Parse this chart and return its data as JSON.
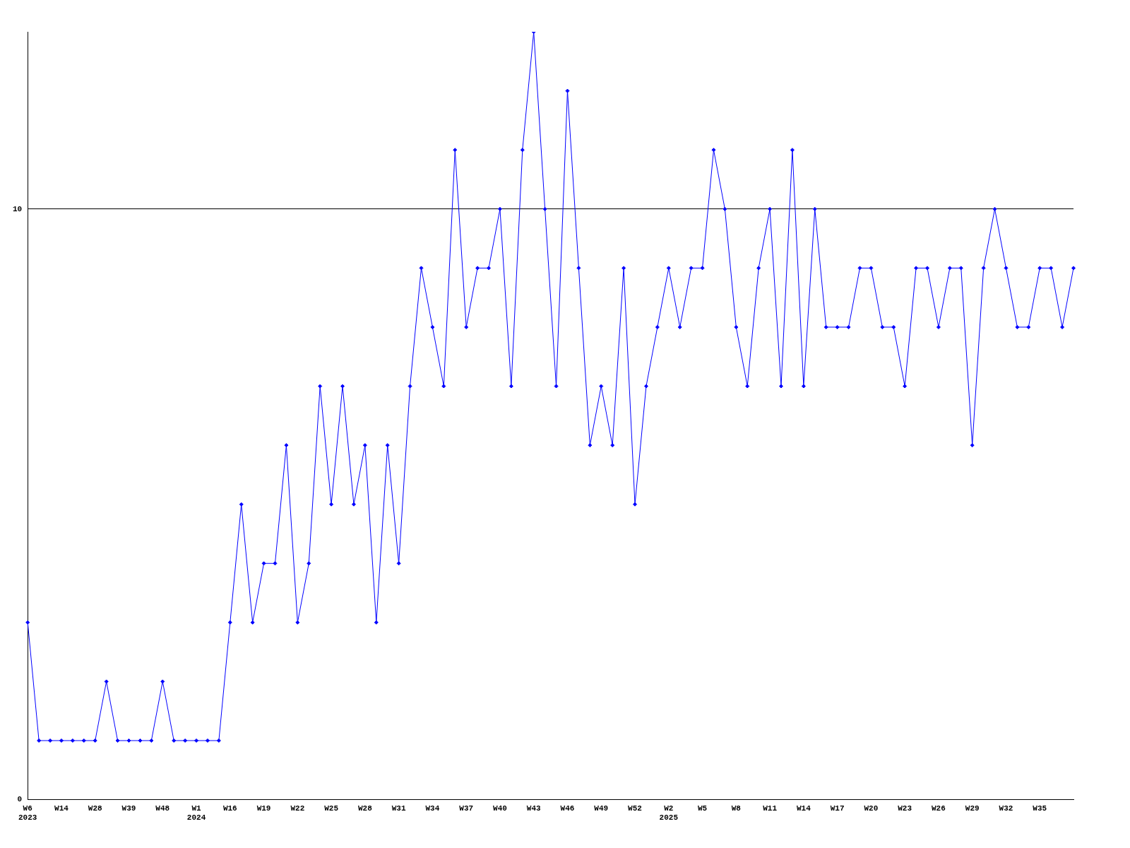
{
  "chart_data": {
    "type": "line",
    "categories": [
      "W6\n2023",
      null,
      null,
      "W14",
      null,
      null,
      "W28",
      null,
      null,
      "W39",
      null,
      null,
      "W48",
      null,
      null,
      "W1\n2024",
      null,
      null,
      "W16",
      null,
      null,
      "W19",
      null,
      null,
      "W22",
      null,
      null,
      "W25",
      null,
      null,
      "W28",
      null,
      null,
      "W31",
      null,
      null,
      "W34",
      null,
      null,
      "W37",
      null,
      null,
      "W40",
      null,
      null,
      "W43",
      null,
      null,
      "W46",
      null,
      null,
      "W49",
      null,
      null,
      "W52",
      null,
      null,
      "W2\n2025",
      null,
      null,
      "W5",
      null,
      null,
      "W8",
      null,
      null,
      "W11",
      null,
      null,
      "W14",
      null,
      null,
      "W17",
      null,
      null,
      "W20",
      null,
      null,
      "W23",
      null,
      null,
      "W26",
      null,
      null,
      "W29",
      null,
      null,
      "W32",
      null,
      null,
      "W35",
      null,
      null,
      null
    ],
    "series": [
      {
        "color": "#0000ff",
        "values": [
          3,
          1,
          1,
          1,
          1,
          1,
          1,
          2,
          1,
          1,
          1,
          1,
          2,
          1,
          1,
          1,
          1,
          1,
          3,
          5,
          3,
          4,
          4,
          6,
          3,
          4,
          7,
          5,
          7,
          5,
          6,
          3,
          6,
          4,
          7,
          9,
          8,
          7,
          11,
          8,
          9,
          9,
          10,
          7,
          11,
          13,
          10,
          7,
          12,
          9,
          6,
          7,
          6,
          9,
          5,
          7,
          8,
          9,
          8,
          9,
          9,
          11,
          10,
          8,
          7,
          9,
          10,
          7,
          11,
          7,
          10,
          8,
          8,
          8,
          9,
          9,
          8,
          8,
          7,
          9,
          9,
          8,
          9,
          9,
          6,
          9,
          10,
          9,
          8,
          8,
          9,
          9,
          8,
          9
        ]
      }
    ],
    "ylim": [
      0,
      13
    ],
    "yticks": [
      0,
      10
    ],
    "grid": "y",
    "marker": "diamond",
    "line_style": "solid",
    "legend": false
  }
}
